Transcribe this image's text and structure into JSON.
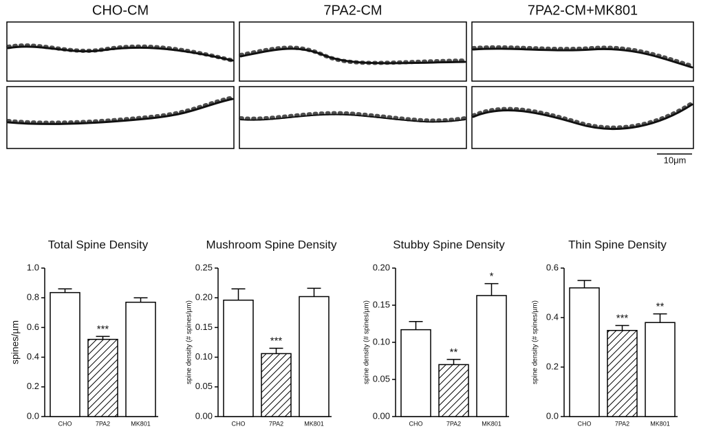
{
  "images": {
    "columns": [
      "CHO-CM",
      "7PA2-CM",
      "7PA2-CM+MK801"
    ],
    "scale_bar": "10μm"
  },
  "chart_data": [
    {
      "type": "bar",
      "title": "Total Spine Density",
      "ylabel": "spines/µm",
      "categories": [
        "CHO",
        "7PA2",
        "MK801"
      ],
      "values": [
        0.835,
        0.52,
        0.77
      ],
      "errors": [
        0.025,
        0.02,
        0.03
      ],
      "significance": [
        null,
        "***",
        null
      ],
      "hatched": [
        false,
        true,
        false
      ],
      "ylim": [
        0,
        1.0
      ],
      "yticks": [
        {
          "value": 0,
          "label": "0.0"
        },
        0.2,
        0.4,
        0.6,
        0.8,
        {
          "value": 1.0,
          "label": "1.0"
        }
      ]
    },
    {
      "type": "bar",
      "title": "Mushroom Spine Density",
      "ylabel": "spine density  (# spines/µm)",
      "categories": [
        "CHO",
        "7PA2",
        "MK801"
      ],
      "values": [
        0.196,
        0.106,
        0.202
      ],
      "errors": [
        0.019,
        0.009,
        0.014
      ],
      "significance": [
        null,
        "***",
        null
      ],
      "hatched": [
        false,
        true,
        false
      ],
      "ylim": [
        0,
        0.25
      ],
      "yticks": [
        {
          "value": 0,
          "label": "0.00"
        },
        0.05,
        {
          "value": 0.1,
          "label": "0.10"
        },
        0.15,
        {
          "value": 0.2,
          "label": "0.20"
        },
        0.25
      ]
    },
    {
      "type": "bar",
      "title": "Stubby Spine Density",
      "ylabel": "spine density  (# spines/µm)",
      "categories": [
        "CHO",
        "7PA2",
        "MK801"
      ],
      "values": [
        0.117,
        0.07,
        0.163
      ],
      "errors": [
        0.011,
        0.007,
        0.016
      ],
      "significance": [
        null,
        "**",
        "*"
      ],
      "hatched": [
        false,
        true,
        false
      ],
      "ylim": [
        0,
        0.2
      ],
      "yticks": [
        {
          "value": 0,
          "label": "0.00"
        },
        0.05,
        {
          "value": 0.1,
          "label": "0.10"
        },
        0.15,
        {
          "value": 0.2,
          "label": "0.20"
        }
      ]
    },
    {
      "type": "bar",
      "title": "Thin Spine Density",
      "ylabel": "spine density  (# spines/µm)",
      "categories": [
        "CHO",
        "7PA2",
        "MK801"
      ],
      "values": [
        0.52,
        0.348,
        0.38
      ],
      "errors": [
        0.03,
        0.02,
        0.035
      ],
      "significance": [
        null,
        "***",
        "**"
      ],
      "hatched": [
        false,
        true,
        false
      ],
      "ylim": [
        0,
        0.6
      ],
      "yticks": [
        {
          "value": 0,
          "label": "0.0"
        },
        0.2,
        0.4,
        0.6
      ]
    }
  ]
}
